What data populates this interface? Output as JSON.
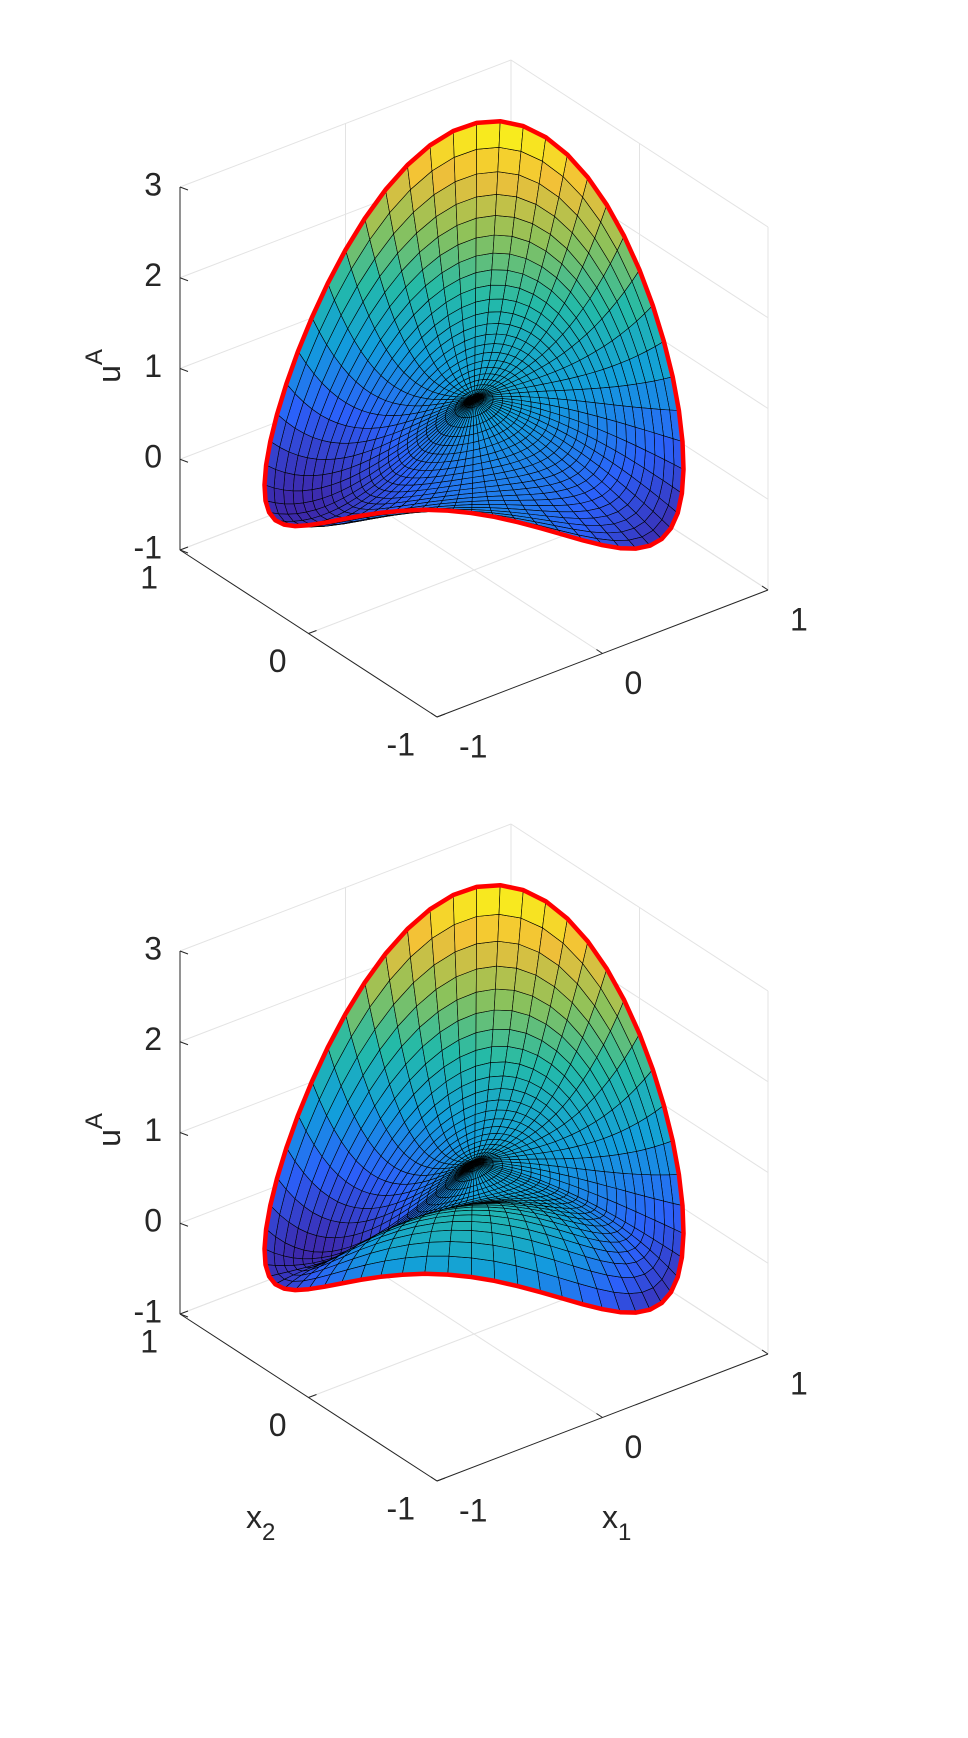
{
  "chart_data": [
    {
      "type": "surface",
      "zlabel": "u",
      "zlabel_sup": "A",
      "xlim": [
        -1,
        1
      ],
      "ylim": [
        -1,
        1
      ],
      "zlim": [
        -1,
        3
      ],
      "xticks": [
        -1,
        0,
        1
      ],
      "yticks": [
        -1,
        0,
        1
      ],
      "zticks": [
        -1,
        0,
        1,
        2,
        3
      ],
      "grid": true,
      "boundary_color": "#ff0000"
    },
    {
      "type": "surface",
      "zlabel": "u",
      "zlabel_sup": "A",
      "xlabel": "x",
      "xlabel_sub": "1",
      "ylabel": "x",
      "ylabel_sub": "2",
      "xlim": [
        -1,
        1
      ],
      "ylim": [
        -1,
        1
      ],
      "zlim": [
        -1,
        3
      ],
      "xticks": [
        -1,
        0,
        1
      ],
      "yticks": [
        -1,
        0,
        1
      ],
      "zticks": [
        -1,
        0,
        1,
        2,
        3
      ],
      "grid": true,
      "boundary_color": "#ff0000"
    }
  ]
}
